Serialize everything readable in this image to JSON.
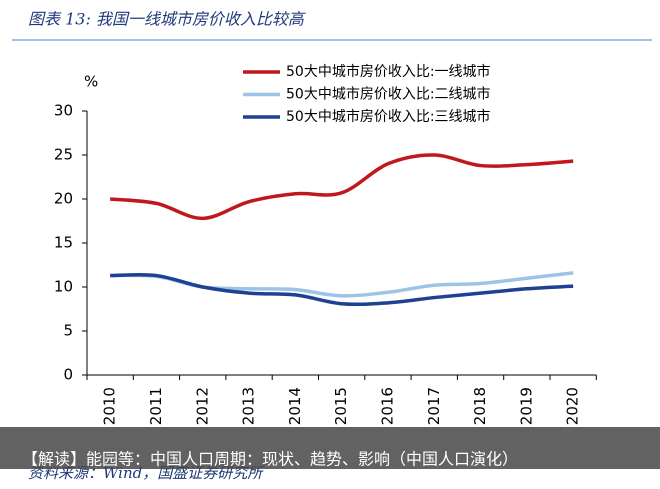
{
  "chart_data": {
    "type": "line",
    "title": "图表 13:  我国一线城市房价收入比较高",
    "y_label": "%",
    "categories": [
      "2010",
      "2011",
      "2012",
      "2013",
      "2014",
      "2015",
      "2016",
      "2017",
      "2018",
      "2019",
      "2020"
    ],
    "series": [
      {
        "name": "50大中城市房价收入比:一线城市",
        "color": "#c0181c",
        "values": [
          20.0,
          19.5,
          17.8,
          19.7,
          20.6,
          20.7,
          24.0,
          25.0,
          23.8,
          23.9,
          24.3
        ]
      },
      {
        "name": "50大中城市房价收入比:二线城市",
        "color": "#9dc3e6",
        "values": [
          11.3,
          11.2,
          10.0,
          9.8,
          9.7,
          9.0,
          9.4,
          10.2,
          10.4,
          11.0,
          11.6
        ]
      },
      {
        "name": "50大中城市房价收入比:三线城市",
        "color": "#1f4192",
        "values": [
          11.3,
          11.3,
          10.0,
          9.3,
          9.1,
          8.1,
          8.2,
          8.8,
          9.3,
          9.8,
          10.1
        ]
      }
    ],
    "ylim": [
      0,
      30
    ],
    "yticks": [
      0,
      5,
      10,
      15,
      20,
      25,
      30
    ],
    "source": "资料来源：Wind，国盛证券研究所",
    "banner": "【解读】能园等：中国人口周期：现状、趋势、影响（中国人口演化）"
  }
}
